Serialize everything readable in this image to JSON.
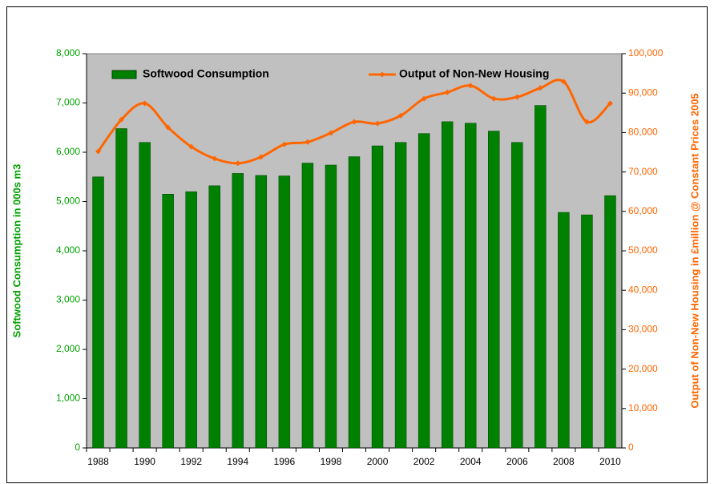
{
  "chart_data": {
    "type": "bar-line",
    "categories": [
      "1988",
      null,
      "1990",
      null,
      "1992",
      null,
      "1994",
      null,
      "1996",
      null,
      "1998",
      null,
      "2000",
      null,
      "2002",
      null,
      "2004",
      null,
      "2006",
      null,
      "2008",
      null,
      "2010"
    ],
    "series": [
      {
        "name": "Softwood Consumption",
        "type": "bar",
        "color": "#008000",
        "axis": "y",
        "values": [
          5500,
          6480,
          6200,
          5150,
          5200,
          5320,
          5570,
          5530,
          5520,
          5780,
          5740,
          5910,
          6130,
          6200,
          6380,
          6620,
          6590,
          6430,
          6200,
          6950,
          4780,
          4730,
          5120
        ]
      },
      {
        "name": "Output of Non-New Housing",
        "type": "line",
        "color": "#ff6600",
        "axis": "y2",
        "values": [
          75200,
          83300,
          87400,
          81300,
          76400,
          73400,
          72200,
          73800,
          77000,
          77600,
          79900,
          82700,
          82300,
          84300,
          88600,
          90200,
          91900,
          88600,
          89000,
          91300,
          92900,
          82700,
          87400
        ]
      }
    ],
    "y_label": "Softwood Consumption in 000s m3",
    "y2_label": "Output of Non-New Housing in £million @ Constant Prices 2005",
    "ylim": [
      0,
      8000
    ],
    "yticks": [
      0,
      {
        "value": 1000,
        "label": "1,000"
      },
      {
        "value": 2000,
        "label": "2,000"
      },
      {
        "value": 3000,
        "label": "3,000"
      },
      {
        "value": 4000,
        "label": "4,000"
      },
      {
        "value": 5000,
        "label": "5,000"
      },
      {
        "value": 6000,
        "label": "6,000"
      },
      {
        "value": 7000,
        "label": "7,000"
      },
      {
        "value": 8000,
        "label": "8,000"
      }
    ],
    "y2lim": [
      0,
      100000
    ],
    "y2ticks": [
      0,
      {
        "value": 10000,
        "label": "10,000"
      },
      {
        "value": 20000,
        "label": "20,000"
      },
      {
        "value": 30000,
        "label": "30,000"
      },
      {
        "value": 40000,
        "label": "40,000"
      },
      {
        "value": 50000,
        "label": "50,000"
      },
      {
        "value": 60000,
        "label": "60,000"
      },
      {
        "value": 70000,
        "label": "70,000"
      },
      {
        "value": 80000,
        "label": "80,000"
      },
      {
        "value": 90000,
        "label": "90,000"
      },
      {
        "value": 100000,
        "label": "100,000"
      }
    ],
    "legend": "top",
    "plot_background": "#c0c0c0"
  }
}
